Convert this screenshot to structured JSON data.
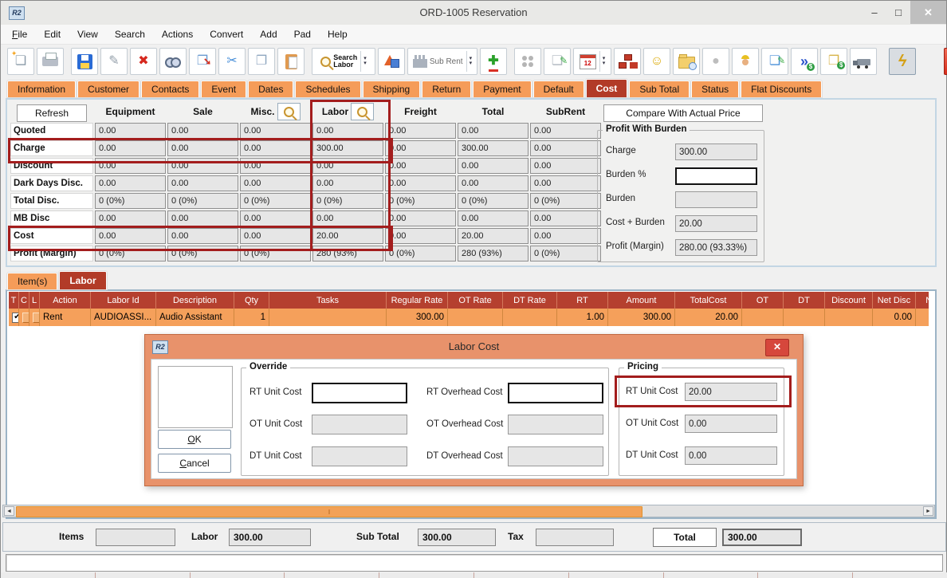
{
  "window": {
    "title": "ORD-1005 Reservation",
    "app_icon": "R2",
    "controls": {
      "minimize": "–",
      "maximize": "□",
      "close": "✕"
    }
  },
  "menu": {
    "items": [
      "File",
      "Edit",
      "View",
      "Search",
      "Actions",
      "Convert",
      "Add",
      "Pad",
      "Help"
    ]
  },
  "toolbar": {
    "buttons": [
      {
        "name": "new-document-button",
        "kind": "glyph",
        "icon": "new-document-icon",
        "glyph": "❏",
        "color": "#8a9aa8",
        "cls": "ic-newdoc"
      },
      {
        "name": "print-button",
        "kind": "css",
        "icon": "printer-icon",
        "cls": "ic-printer"
      },
      {
        "name": "save-button",
        "kind": "css",
        "icon": "floppy-disk-icon",
        "cls": "ic-floppy",
        "gap": true
      },
      {
        "name": "pen-button",
        "kind": "glyph",
        "icon": "pen-icon",
        "glyph": "✎",
        "color": "#95a0ab"
      },
      {
        "name": "delete-button",
        "kind": "glyph",
        "icon": "delete-x-icon",
        "glyph": "✖",
        "color": "#d6281e"
      },
      {
        "name": "find-button",
        "kind": "css",
        "icon": "binoculars-icon",
        "cls": "ic-binoc"
      },
      {
        "name": "copy-special-button",
        "kind": "glyph",
        "icon": "copy-arrow-icon",
        "glyph": "❐",
        "color": "#6a9ad0",
        "cls": "ic-copyarrow"
      },
      {
        "name": "cut-button",
        "kind": "glyph",
        "icon": "scissors-icon",
        "glyph": "✂",
        "color": "#4a90d9"
      },
      {
        "name": "copy-button",
        "kind": "glyph",
        "icon": "copy-pages-icon",
        "glyph": "❐",
        "color": "#8fa7c0"
      },
      {
        "name": "paste-button",
        "kind": "css",
        "icon": "clipboard-paste-icon",
        "cls": "ic-paste"
      },
      {
        "name": "search-labor-button",
        "kind": "searchlabor",
        "icon": "search-magnifier-icon",
        "label": "Search Labor",
        "gap": true
      },
      {
        "name": "shapes-button",
        "kind": "css",
        "icon": "3d-shapes-icon",
        "cls": "ic-shapes"
      },
      {
        "name": "sub-rent-button",
        "kind": "subrent",
        "icon": "factory-icon",
        "label": "Sub Rent"
      },
      {
        "name": "add-button",
        "kind": "glyph",
        "icon": "add-plus-icon",
        "glyph": "✚",
        "color": "#2aa12a",
        "cls": "ic-add"
      },
      {
        "name": "group-button",
        "kind": "css",
        "icon": "gray-circles-icon",
        "cls": "ic-group",
        "gap": true
      },
      {
        "name": "notes-button",
        "kind": "glyph",
        "icon": "notepad-pencil-icon",
        "glyph": "❏",
        "color": "#aeb6be",
        "cls": "ic-note"
      },
      {
        "name": "calendar-button",
        "kind": "calendar",
        "icon": "calendar-icon",
        "label": "12"
      },
      {
        "name": "org-chart-button",
        "kind": "css",
        "icon": "org-chart-icon",
        "cls": "ic-org"
      },
      {
        "name": "smiley-button",
        "kind": "glyph",
        "icon": "smiley-face-icon",
        "glyph": "☺",
        "color": "#dba800"
      },
      {
        "name": "folder-clock-button",
        "kind": "css",
        "icon": "folder-clock-icon",
        "cls": "ic-folder"
      },
      {
        "name": "sphere-button",
        "kind": "glyph",
        "icon": "gray-sphere-icon",
        "glyph": "●",
        "color": "#bdbdbd"
      },
      {
        "name": "worker-button",
        "kind": "css",
        "icon": "worker-hardhat-icon",
        "cls": "ic-worker"
      },
      {
        "name": "edit-note-button",
        "kind": "glyph",
        "icon": "edit-document-icon",
        "glyph": "❏",
        "color": "#4a90d9",
        "cls": "ic-editnote"
      },
      {
        "name": "money-transfer-button",
        "kind": "glyph",
        "icon": "money-transfer-icon",
        "glyph": "»",
        "color": "#2a55cc",
        "cls": "ic-moneyarrow"
      },
      {
        "name": "money-docs-button",
        "kind": "glyph",
        "icon": "money-documents-icon",
        "glyph": "❐",
        "color": "#d8b44a",
        "cls": "ic-moneydoc"
      },
      {
        "name": "truck-button",
        "kind": "css",
        "icon": "truck-icon",
        "cls": "ic-truck"
      },
      {
        "name": "lightning-button",
        "kind": "glyph",
        "icon": "lightning-bolt-icon",
        "glyph": "ϟ",
        "color": "#d4a017",
        "cls": "ic-light",
        "pressed": true,
        "gapbig": true
      },
      {
        "name": "exit-button",
        "kind": "exit",
        "icon": "exit-icon",
        "label": "EXIT"
      }
    ]
  },
  "tabs": {
    "items": [
      "Information",
      "Customer",
      "Contacts",
      "Event",
      "Dates",
      "Schedules",
      "Shipping",
      "Return",
      "Payment",
      "Default",
      "Cost",
      "Sub Total",
      "Status",
      "Flat Discounts"
    ],
    "selected": "Cost"
  },
  "cost_panel": {
    "refresh": "Refresh",
    "columns": [
      "Equipment",
      "Sale",
      "Misc.",
      "Labor",
      "Freight",
      "Total",
      "SubRent"
    ],
    "search_columns": [
      "Misc.",
      "Labor"
    ],
    "rows": [
      {
        "label": "Quoted",
        "values": [
          "0.00",
          "0.00",
          "0.00",
          "0.00",
          "0.00",
          "0.00",
          "0.00"
        ]
      },
      {
        "label": "Charge",
        "values": [
          "0.00",
          "0.00",
          "0.00",
          "300.00",
          "0.00",
          "300.00",
          "0.00"
        ]
      },
      {
        "label": "Discount",
        "values": [
          "0.00",
          "0.00",
          "0.00",
          "0.00",
          "0.00",
          "0.00",
          "0.00"
        ]
      },
      {
        "label": "Dark Days Disc.",
        "values": [
          "0.00",
          "0.00",
          "0.00",
          "0.00",
          "0.00",
          "0.00",
          "0.00"
        ]
      },
      {
        "label": "Total Disc.",
        "values": [
          "0 (0%)",
          "0 (0%)",
          "0 (0%)",
          "0 (0%)",
          "0 (0%)",
          "0 (0%)",
          "0 (0%)"
        ]
      },
      {
        "label": "MB Disc",
        "values": [
          "0.00",
          "0.00",
          "0.00",
          "0.00",
          "0.00",
          "0.00",
          "0.00"
        ]
      },
      {
        "label": "Cost",
        "values": [
          "0.00",
          "0.00",
          "0.00",
          "20.00",
          "0.00",
          "20.00",
          "0.00"
        ]
      },
      {
        "label": "Profit (Margin)",
        "values": [
          "0 (0%)",
          "0 (0%)",
          "0 (0%)",
          "280 (93%)",
          "0 (0%)",
          "280 (93%)",
          "0 (0%)"
        ]
      }
    ],
    "highlighted_rows": [
      "Charge",
      "Cost"
    ],
    "highlighted_column": "Labor"
  },
  "burden_panel": {
    "compare_button": "Compare With Actual Price",
    "title": "Profit With Burden",
    "fields": [
      {
        "label": "Charge",
        "value": "300.00",
        "editable": false
      },
      {
        "label": "Burden %",
        "value": "",
        "editable": true
      },
      {
        "label": "Burden",
        "value": "",
        "editable": false
      },
      {
        "label": "Cost + Burden",
        "value": "20.00",
        "editable": false
      },
      {
        "label": "Profit (Margin)",
        "value": "280.00 (93.33%)",
        "editable": false
      }
    ]
  },
  "item_tabs": {
    "items": [
      "Item(s)",
      "Labor"
    ],
    "selected": "Labor"
  },
  "item_grid": {
    "columns": [
      "T",
      "C",
      "L",
      "Action",
      "Labor Id",
      "Description",
      "Qty",
      "Tasks",
      "Regular Rate",
      "OT Rate",
      "DT Rate",
      "RT",
      "Amount",
      "TotalCost",
      "OT",
      "DT",
      "Discount",
      "Net Disc",
      "Net Posted"
    ],
    "row": {
      "t_checked": true,
      "c_checked": false,
      "l_checked": false,
      "action": "Rent",
      "labor_id": "AUDIOASSI...",
      "description": "Audio Assistant",
      "qty": "1",
      "tasks": "",
      "regular_rate": "300.00",
      "ot_rate": "",
      "dt_rate": "",
      "rt": "1.00",
      "amount": "300.00",
      "total_cost": "20.00",
      "ot": "",
      "dt": "",
      "discount": "",
      "net_disc": "0.00",
      "net_posted": "",
      "check_glyph": "✔"
    }
  },
  "dialog": {
    "title": "Labor Cost",
    "app_icon": "R2",
    "close_glyph": "✕",
    "ok": "OK",
    "cancel": "Cancel",
    "override": {
      "title": "Override",
      "rows": [
        {
          "left_label": "RT Unit Cost",
          "left_value": "",
          "editable": true,
          "right_label": "RT Overhead Cost",
          "right_value": ""
        },
        {
          "left_label": "OT Unit Cost",
          "left_value": "",
          "editable": false,
          "right_label": "OT Overhead Cost",
          "right_value": ""
        },
        {
          "left_label": "DT Unit Cost",
          "left_value": "",
          "editable": false,
          "right_label": "DT Overhead Cost",
          "right_value": ""
        }
      ]
    },
    "pricing": {
      "title": "Pricing",
      "rows": [
        {
          "label": "RT Unit Cost",
          "value": "20.00",
          "highlight": true
        },
        {
          "label": "OT Unit Cost",
          "value": "0.00"
        },
        {
          "label": "DT Unit Cost",
          "value": "0.00"
        }
      ]
    }
  },
  "totals": {
    "fields": [
      {
        "label": "Items",
        "value": ""
      },
      {
        "label": "Labor",
        "value": "300.00"
      },
      {
        "label": "Sub Total",
        "value": "300.00"
      },
      {
        "label": "Tax",
        "value": ""
      },
      {
        "label": "Total",
        "value": "300.00",
        "boxed": true
      }
    ]
  }
}
